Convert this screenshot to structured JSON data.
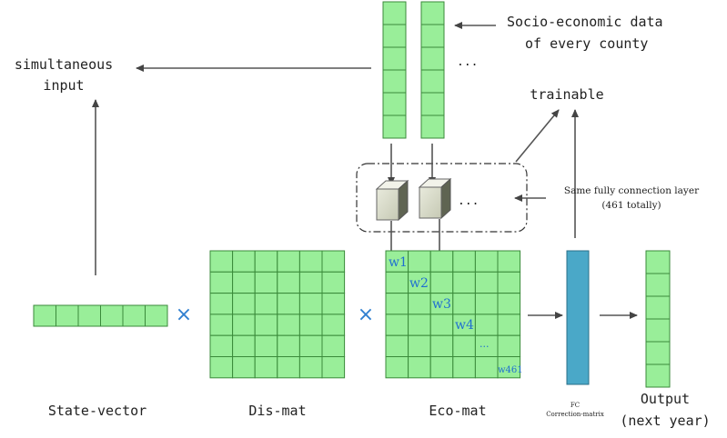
{
  "labels": {
    "socio_line1": "Socio-economic data",
    "socio_line2": "of every county",
    "simultaneous_line1": "simultaneous",
    "simultaneous_line2": "input",
    "trainable": "trainable",
    "same_fc_line1": "Same fully connection layer",
    "same_fc_line2": "(461 totally)",
    "state_vector": "State-vector",
    "dis_mat": "Dis-mat",
    "eco_mat": "Eco-mat",
    "fc_line1": "FC",
    "fc_line2": "Correction-matrix",
    "output_line1": "Output",
    "output_line2": "(next year)",
    "ellipsis_top": "...",
    "ellipsis_fc": "...",
    "multiply_1": "×",
    "multiply_2": "×"
  },
  "weights": {
    "w1": "w1",
    "w2": "w2",
    "w3": "w3",
    "w4": "w4",
    "dots": "...",
    "w461": "w461"
  },
  "colors": {
    "cell_fill": "#99ee99",
    "cell_stroke": "#3a8a3a",
    "fc_bar": "#4aa8c8",
    "accent_blue": "#1f6fd1",
    "arrow": "#555555"
  }
}
